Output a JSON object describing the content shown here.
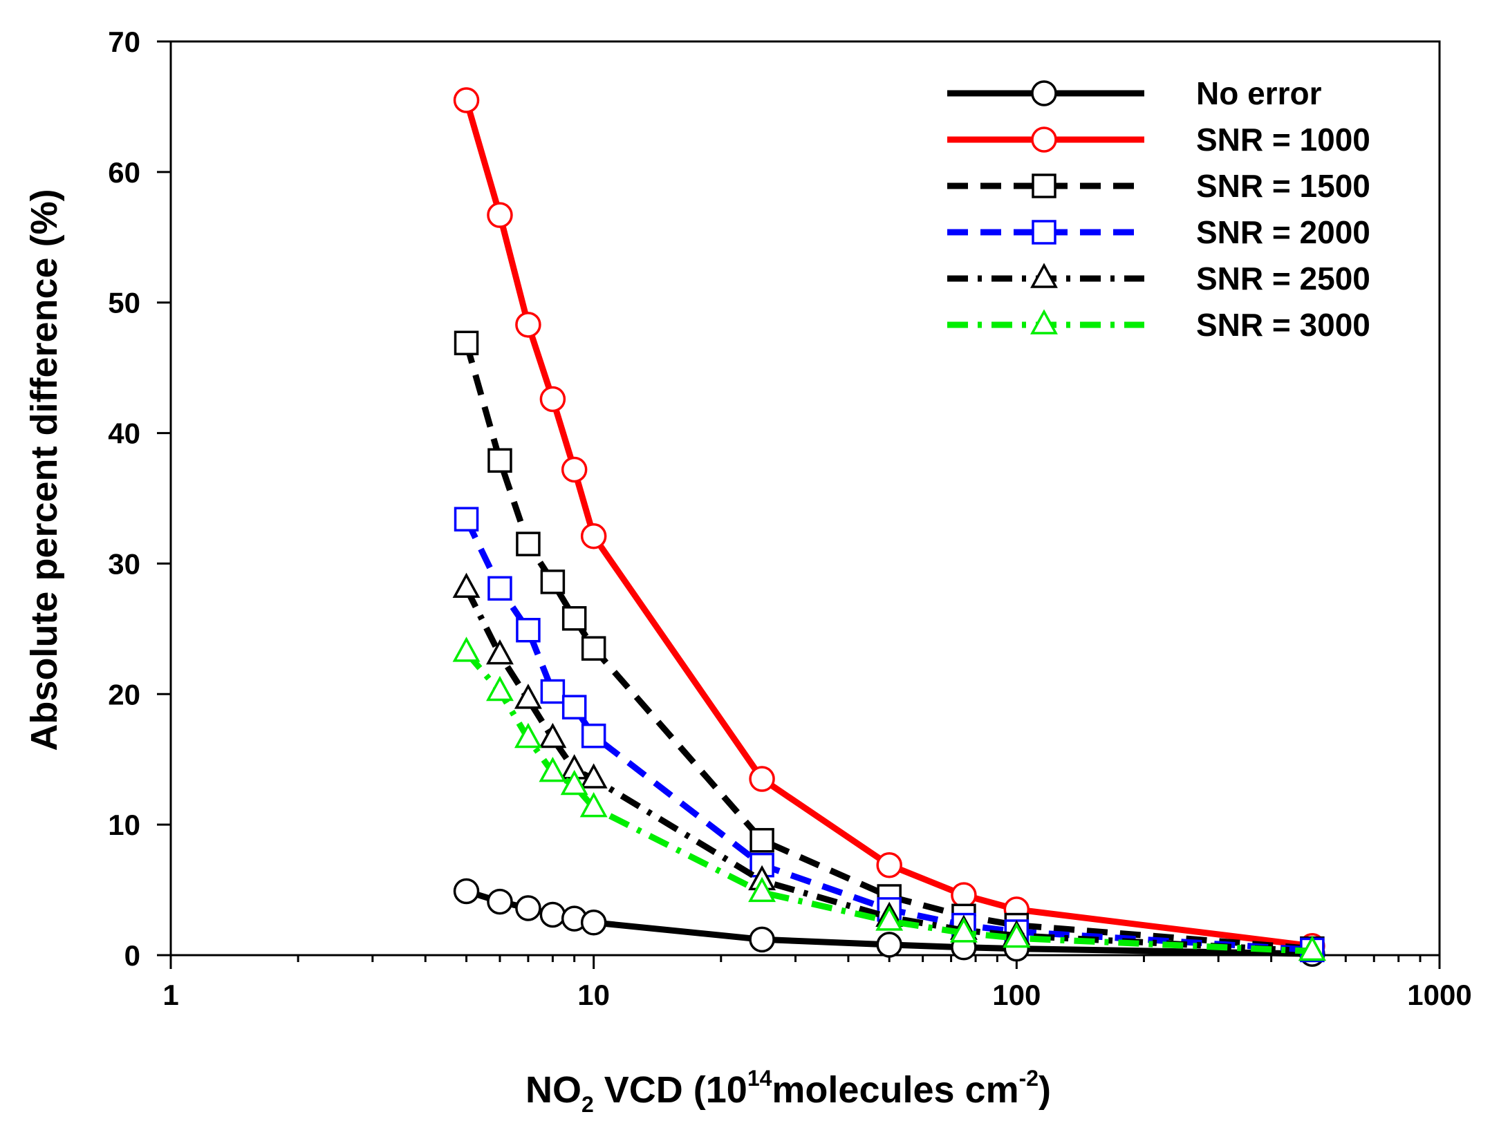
{
  "chart_data": {
    "type": "line",
    "title": "",
    "xlabel": {
      "prefix": "NO",
      "sub": "2",
      "mid": " VCD (10",
      "sup": "14",
      "mid2": "molecules cm",
      "sup2": "-2",
      "suffix": ")"
    },
    "ylabel": "Absolute percent difference (%)",
    "xscale": "log",
    "xlim": [
      1,
      1000
    ],
    "ylim": [
      0,
      70
    ],
    "xticks": [
      1,
      10,
      100,
      1000
    ],
    "xtick_labels": [
      "1",
      "10",
      "100",
      "1000"
    ],
    "yticks": [
      0,
      10,
      20,
      30,
      40,
      50,
      60,
      70
    ],
    "ytick_labels": [
      "0",
      "10",
      "20",
      "30",
      "40",
      "50",
      "60",
      "70"
    ],
    "legend_position": "top-right",
    "x": [
      5,
      6,
      7,
      8,
      9,
      10,
      25,
      50,
      75,
      100,
      500
    ],
    "series": [
      {
        "name": "No error",
        "color": "#000000",
        "dash": "solid",
        "marker": "circle",
        "values": [
          4.9,
          4.1,
          3.6,
          3.1,
          2.8,
          2.5,
          1.2,
          0.8,
          0.6,
          0.5,
          0.1
        ]
      },
      {
        "name": "SNR = 1000",
        "color": "#ff0000",
        "dash": "solid",
        "marker": "circle",
        "values": [
          65.5,
          56.7,
          48.3,
          42.6,
          37.2,
          32.1,
          13.5,
          6.9,
          4.6,
          3.5,
          0.7
        ]
      },
      {
        "name": "SNR = 1500",
        "color": "#000000",
        "dash": "dash",
        "marker": "square",
        "values": [
          46.9,
          37.9,
          31.5,
          28.6,
          25.8,
          23.5,
          8.8,
          4.5,
          3.0,
          2.3,
          0.5
        ]
      },
      {
        "name": "SNR = 2000",
        "color": "#0000ff",
        "dash": "dash",
        "marker": "square",
        "values": [
          33.4,
          28.1,
          24.9,
          20.2,
          19.0,
          16.8,
          6.9,
          3.5,
          2.3,
          1.8,
          0.4
        ]
      },
      {
        "name": "SNR = 2500",
        "color": "#000000",
        "dash": "dashdot",
        "marker": "triangle",
        "values": [
          28.1,
          23.0,
          19.6,
          16.6,
          14.2,
          13.5,
          5.7,
          2.9,
          1.9,
          1.5,
          0.3
        ]
      },
      {
        "name": "SNR = 3000",
        "color": "#00ee00",
        "dash": "dashdot",
        "marker": "triangle",
        "values": [
          23.2,
          20.2,
          16.6,
          14.0,
          13.0,
          11.3,
          4.8,
          2.6,
          1.7,
          1.3,
          0.3
        ]
      }
    ]
  }
}
